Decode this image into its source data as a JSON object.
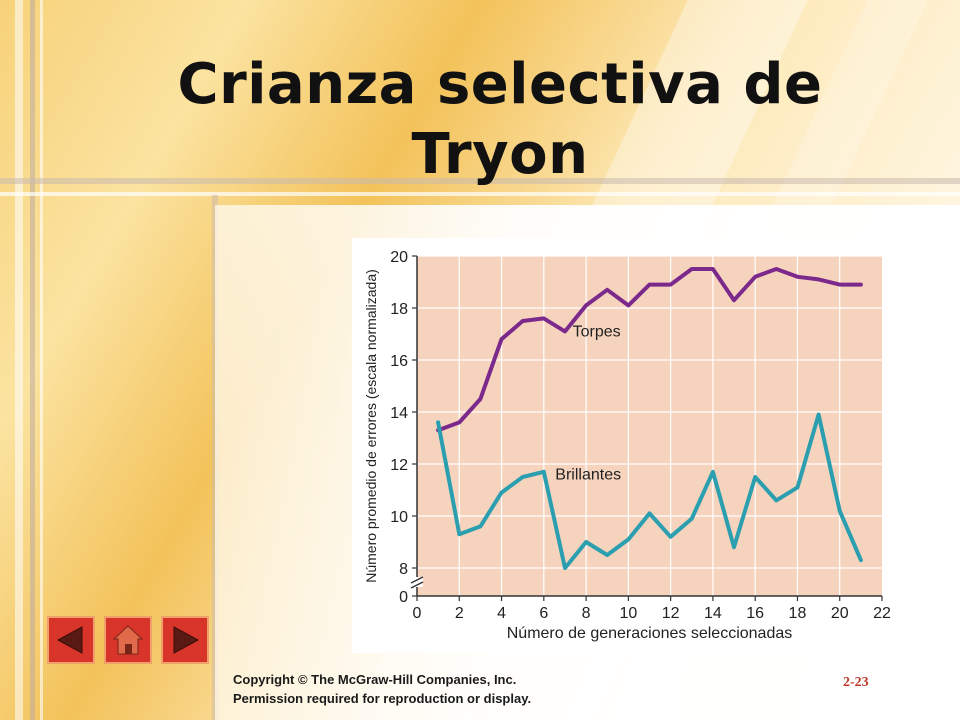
{
  "slide": {
    "title_line1": "Crianza selectiva de",
    "title_line2": "Tryon",
    "copyright_line1": "Copyright © The McGraw-Hill Companies, Inc.",
    "copyright_line2": "Permission required for reproduction or display.",
    "page_number": "2-23"
  },
  "nav": {
    "prev": "prev-arrow-icon",
    "home": "home-icon",
    "next": "next-arrow-icon",
    "color": "#d8342a"
  },
  "chart_data": {
    "type": "line",
    "xlabel": "Número de generaciones seleccionadas",
    "ylabel": "Número promedio de errores (escala normalizada)",
    "xlim": [
      0,
      22
    ],
    "ylim": [
      0,
      20
    ],
    "y_break": [
      0,
      8
    ],
    "x_ticks": [
      0,
      2,
      4,
      6,
      8,
      10,
      12,
      14,
      16,
      18,
      20,
      22
    ],
    "y_ticks": [
      0,
      8,
      10,
      12,
      14,
      16,
      18,
      20
    ],
    "grid": true,
    "background": "#f6d3bd",
    "series": [
      {
        "name": "Torpes",
        "color": "#7b2a8c",
        "x": [
          1,
          2,
          3,
          4,
          5,
          6,
          7,
          8,
          9,
          10,
          11,
          12,
          13,
          14,
          15,
          16,
          17,
          18,
          19,
          20,
          21
        ],
        "values": [
          13.3,
          13.6,
          14.5,
          16.8,
          17.5,
          17.6,
          17.1,
          18.1,
          18.7,
          18.1,
          18.9,
          18.9,
          19.5,
          19.5,
          18.3,
          19.2,
          19.5,
          19.2,
          19.1,
          18.9,
          18.9
        ]
      },
      {
        "name": "Brillantes",
        "color": "#2b9fb0",
        "x": [
          1,
          2,
          3,
          4,
          5,
          6,
          7,
          8,
          9,
          10,
          11,
          12,
          13,
          14,
          15,
          16,
          17,
          18,
          19,
          20,
          21
        ],
        "values": [
          13.6,
          9.3,
          9.6,
          10.9,
          11.5,
          11.7,
          8.0,
          9.0,
          8.5,
          9.1,
          10.1,
          9.2,
          9.9,
          11.7,
          8.8,
          11.5,
          10.6,
          11.1,
          13.9,
          10.2,
          8.3
        ]
      }
    ]
  }
}
